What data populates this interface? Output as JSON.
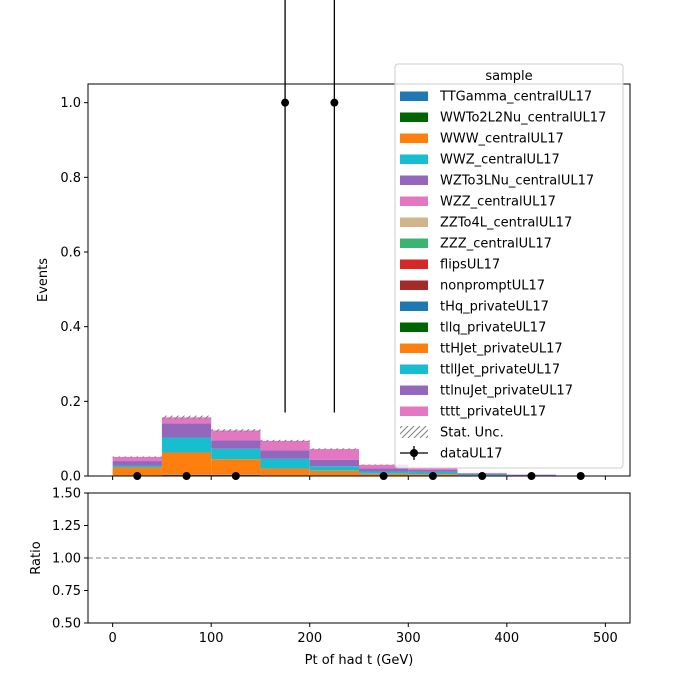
{
  "chart_data": [
    {
      "type": "bar",
      "stacked": true,
      "xlabel": "",
      "ylabel": "Events",
      "ylim": [
        0,
        1.05
      ],
      "xlim": [
        -25,
        525
      ],
      "grid": false,
      "yticks": [
        "0.0",
        "0.2",
        "0.4",
        "0.6",
        "0.8",
        "1.0"
      ],
      "bin_edges": [
        0,
        50,
        100,
        150,
        200,
        250,
        300,
        350,
        400,
        450,
        500
      ],
      "legend": {
        "title": "sample",
        "placement": "top-right"
      },
      "series": [
        {
          "name": "TTGamma_centralUL17",
          "color": "#1f77b4",
          "values": [
            0.002,
            0.003,
            0.003,
            0.002,
            0.002,
            0.001,
            0.001,
            0.0,
            0.0,
            0.0
          ]
        },
        {
          "name": "WWTo2L2Nu_centralUL17",
          "color": "#006400",
          "values": [
            0.0,
            0.0,
            0.0,
            0.0,
            0.0,
            0.0,
            0.0,
            0.0,
            0.0,
            0.0
          ]
        },
        {
          "name": "WWW_centralUL17",
          "color": "#ff7f0e",
          "values": [
            0.021,
            0.06,
            0.042,
            0.018,
            0.012,
            0.005,
            0.004,
            0.002,
            0.001,
            0.0
          ]
        },
        {
          "name": "WWZ_centralUL17",
          "color": "#17becf",
          "values": [
            0.005,
            0.04,
            0.028,
            0.026,
            0.012,
            0.006,
            0.006,
            0.002,
            0.001,
            0.0
          ]
        },
        {
          "name": "WZTo3LNu_centralUL17",
          "color": "#9467bd",
          "values": [
            0.012,
            0.038,
            0.022,
            0.023,
            0.017,
            0.008,
            0.005,
            0.002,
            0.001,
            0.0
          ]
        },
        {
          "name": "WZZ_centralUL17",
          "color": "#e377c2",
          "values": [
            0.011,
            0.016,
            0.027,
            0.025,
            0.029,
            0.01,
            0.004,
            0.002,
            0.001,
            0.0
          ]
        },
        {
          "name": "ZZTo4L_centralUL17",
          "color": "#d2b48c",
          "values": [
            0.0,
            0.0,
            0.0,
            0.0,
            0.0,
            0.0,
            0.0,
            0.0,
            0.0,
            0.0
          ]
        },
        {
          "name": "ZZZ_centralUL17",
          "color": "#3cb371",
          "values": [
            0.0,
            0.0,
            0.0,
            0.0,
            0.0,
            0.0,
            0.0,
            0.0,
            0.0,
            0.0
          ]
        },
        {
          "name": "flipsUL17",
          "color": "#d62728",
          "values": [
            0.0,
            0.0,
            0.0,
            0.0,
            0.0,
            0.0,
            0.0,
            0.0,
            0.0,
            0.0
          ]
        },
        {
          "name": "nonpromptUL17",
          "color": "#a52a2a",
          "values": [
            0.0,
            0.0,
            0.0,
            0.0,
            0.0,
            0.0,
            0.0,
            0.0,
            0.0,
            0.0
          ]
        },
        {
          "name": "tHq_privateUL17",
          "color": "#1f77b4",
          "values": [
            0.0,
            0.0,
            0.0,
            0.0,
            0.0,
            0.0,
            0.0,
            0.0,
            0.0,
            0.0
          ]
        },
        {
          "name": "tllq_privateUL17",
          "color": "#006400",
          "values": [
            0.0,
            0.0,
            0.0,
            0.0,
            0.0,
            0.0,
            0.0,
            0.0,
            0.0,
            0.0
          ]
        },
        {
          "name": "ttHJet_privateUL17",
          "color": "#ff7f0e",
          "values": [
            0.0,
            0.0,
            0.0,
            0.0,
            0.0,
            0.0,
            0.0,
            0.0,
            0.0,
            0.0
          ]
        },
        {
          "name": "ttllJet_privateUL17",
          "color": "#17becf",
          "values": [
            0.0,
            0.0,
            0.0,
            0.0,
            0.0,
            0.0,
            0.0,
            0.0,
            0.0,
            0.0
          ]
        },
        {
          "name": "ttlnuJet_privateUL17",
          "color": "#9467bd",
          "values": [
            0.0,
            0.0,
            0.0,
            0.0,
            0.0,
            0.0,
            0.0,
            0.0,
            0.0,
            0.0
          ]
        },
        {
          "name": "tttt_privateUL17",
          "color": "#e377c2",
          "values": [
            0.0,
            0.0,
            0.0,
            0.0,
            0.0,
            0.0,
            0.0,
            0.0,
            0.0,
            0.0
          ]
        }
      ],
      "stat_unc_label": "Stat. Unc.",
      "data": {
        "name": "dataUL17",
        "x": [
          25,
          75,
          125,
          175,
          225,
          275,
          325,
          375,
          425,
          475
        ],
        "y": [
          0,
          0,
          0,
          1,
          1,
          0,
          0,
          0,
          0,
          0
        ],
        "yerr_up": [
          0,
          0,
          0,
          1,
          1,
          0,
          0,
          0,
          0,
          0
        ],
        "yerr_down": [
          0,
          0,
          0,
          0.83,
          0.83,
          0,
          0,
          0,
          0,
          0
        ]
      }
    },
    {
      "type": "line",
      "xlabel": "Pt of had t (GeV)",
      "ylabel": "Ratio",
      "ylim": [
        0.5,
        1.5
      ],
      "xlim": [
        -25,
        525
      ],
      "yticks": [
        "0.50",
        "0.75",
        "1.00",
        "1.25",
        "1.50"
      ],
      "xticks": [
        "0",
        "100",
        "200",
        "300",
        "400",
        "500"
      ],
      "reference_line": 1.0,
      "grid": false
    }
  ]
}
